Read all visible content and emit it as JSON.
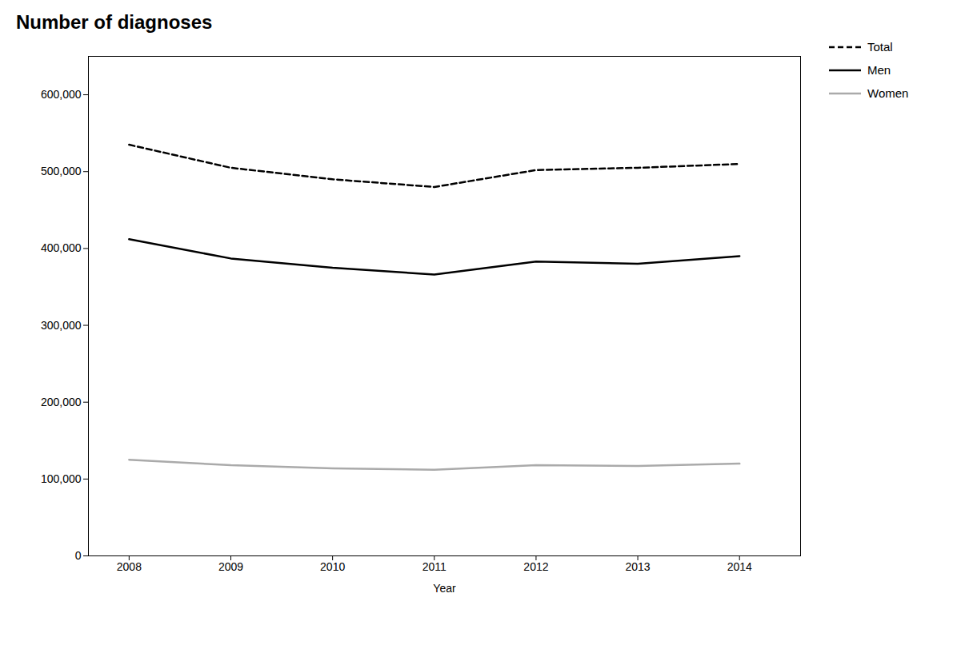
{
  "chart_data": {
    "type": "line",
    "title": "Number of diagnoses",
    "xlabel": "Year",
    "x": [
      2008,
      2009,
      2010,
      2011,
      2012,
      2013,
      2014
    ],
    "series": [
      {
        "name": "Total",
        "color": "#000000",
        "line_style": "dashed",
        "values": [
          535000,
          505000,
          490000,
          480000,
          502000,
          505000,
          510000
        ]
      },
      {
        "name": "Men",
        "color": "#000000",
        "line_style": "solid",
        "values": [
          412000,
          387000,
          375000,
          366000,
          383000,
          380000,
          390000
        ]
      },
      {
        "name": "Women",
        "color": "#aaaaaa",
        "line_style": "solid",
        "values": [
          125000,
          118000,
          114000,
          112000,
          118000,
          117000,
          120000
        ]
      }
    ],
    "xlim": [
      2007.6,
      2014.6
    ],
    "xticks": [
      2008,
      2009,
      2010,
      2011,
      2012,
      2013,
      2014
    ],
    "ylim": [
      0,
      650000
    ],
    "yticks": [
      0,
      {
        "value": 100000,
        "label": "100,000"
      },
      {
        "value": 200000,
        "label": "200,000"
      },
      {
        "value": 300000,
        "label": "300,000"
      },
      {
        "value": 400000,
        "label": "400,000"
      },
      {
        "value": 500000,
        "label": "500,000"
      },
      {
        "value": 600000,
        "label": "600,000"
      }
    ],
    "grid": false,
    "legend": "right"
  }
}
